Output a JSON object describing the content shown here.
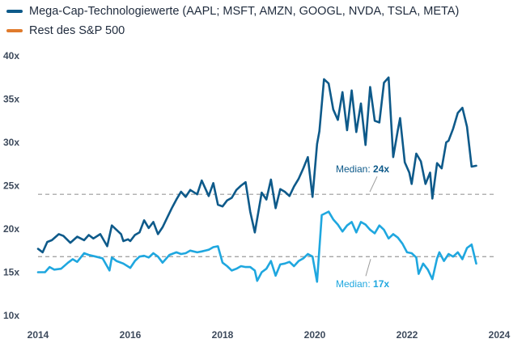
{
  "chart_data": {
    "type": "line",
    "title": "",
    "xlabel": "",
    "ylabel": "",
    "xlim": [
      2014,
      2024
    ],
    "ylim": [
      10,
      40
    ],
    "x_ticks": [
      "2014",
      "2016",
      "2018",
      "2020",
      "2022",
      "2024"
    ],
    "y_ticks": [
      "10x",
      "15x",
      "20x",
      "25x",
      "30x",
      "35x",
      "40x"
    ],
    "colors": {
      "mega": "#0e5a8a",
      "rest": "#1fa7df",
      "legend_rest": "#e07b2c",
      "median": "#9a9a9a"
    },
    "legend": [
      {
        "label": "Mega-Cap-Technologiewerte (AAPL; MSFT, AMZN, GOOGL, NVDA, TSLA, META)",
        "color": "#0e5a8a"
      },
      {
        "label": "Rest des S&P 500",
        "color": "#e07b2c"
      }
    ],
    "medians": [
      {
        "name": "mega",
        "value": 24,
        "prefix": "Median: ",
        "value_label": "24x"
      },
      {
        "name": "rest",
        "value": 16.8,
        "prefix": "Median: ",
        "value_label": "17x"
      }
    ],
    "series": [
      {
        "name": "Mega-Cap-Technologiewerte (AAPL; MSFT, AMZN, GOOGL, NVDA, TSLA, META)",
        "x": [
          2014.0,
          2014.1,
          2014.2,
          2014.3,
          2014.45,
          2014.55,
          2014.7,
          2014.85,
          2015.0,
          2015.1,
          2015.2,
          2015.35,
          2015.5,
          2015.6,
          2015.7,
          2015.8,
          2015.85,
          2015.95,
          2016.0,
          2016.1,
          2016.2,
          2016.3,
          2016.4,
          2016.5,
          2016.6,
          2016.7,
          2016.8,
          2016.9,
          2017.0,
          2017.1,
          2017.2,
          2017.3,
          2017.45,
          2017.55,
          2017.7,
          2017.8,
          2017.9,
          2018.0,
          2018.1,
          2018.2,
          2018.3,
          2018.4,
          2018.5,
          2018.6,
          2018.7,
          2018.85,
          2018.95,
          2019.05,
          2019.15,
          2019.25,
          2019.35,
          2019.45,
          2019.55,
          2019.65,
          2019.75,
          2019.85,
          2019.95,
          2020.05,
          2020.1,
          2020.2,
          2020.3,
          2020.4,
          2020.5,
          2020.6,
          2020.7,
          2020.8,
          2020.9,
          2021.0,
          2021.1,
          2021.2,
          2021.3,
          2021.4,
          2021.5,
          2021.6,
          2021.7,
          2021.8,
          2021.85,
          2021.95,
          2022.05,
          2022.1,
          2022.2,
          2022.3,
          2022.4,
          2022.5,
          2022.55,
          2022.65,
          2022.75,
          2022.85,
          2022.9,
          2023.0,
          2023.1,
          2023.2,
          2023.3,
          2023.4,
          2023.5
        ],
        "values": [
          17.7,
          17.3,
          18.5,
          18.7,
          19.4,
          19.2,
          18.4,
          19.1,
          18.7,
          19.3,
          18.9,
          19.4,
          18.0,
          20.4,
          19.9,
          19.4,
          18.6,
          18.8,
          18.6,
          19.3,
          19.6,
          21.0,
          20.1,
          20.8,
          19.4,
          20.2,
          21.3,
          22.4,
          23.4,
          24.3,
          23.7,
          24.5,
          24.0,
          25.6,
          23.8,
          25.3,
          22.8,
          22.6,
          23.3,
          23.6,
          24.5,
          25.0,
          25.4,
          22.0,
          19.6,
          24.2,
          23.4,
          25.7,
          22.4,
          24.6,
          24.3,
          23.8,
          24.9,
          25.8,
          27.0,
          28.3,
          23.7,
          29.8,
          31.3,
          37.3,
          36.8,
          33.8,
          32.6,
          35.8,
          31.4,
          36.0,
          31.2,
          34.5,
          29.7,
          36.4,
          32.5,
          32.3,
          36.9,
          37.5,
          28.3,
          31.4,
          32.8,
          27.7,
          26.5,
          25.2,
          28.7,
          27.8,
          25.2,
          26.5,
          23.5,
          27.6,
          27.0,
          30.0,
          30.2,
          31.6,
          33.4,
          34.0,
          31.8,
          27.2,
          27.3
        ],
        "color": "#0e5a8a"
      },
      {
        "name": "Rest des S&P 500",
        "x": [
          2014.0,
          2014.15,
          2014.25,
          2014.35,
          2014.5,
          2014.65,
          2014.75,
          2014.85,
          2015.0,
          2015.1,
          2015.25,
          2015.4,
          2015.55,
          2015.6,
          2015.7,
          2015.85,
          2016.0,
          2016.1,
          2016.2,
          2016.3,
          2016.4,
          2016.5,
          2016.6,
          2016.7,
          2016.85,
          2017.0,
          2017.1,
          2017.2,
          2017.3,
          2017.45,
          2017.55,
          2017.7,
          2017.8,
          2017.9,
          2018.0,
          2018.1,
          2018.2,
          2018.3,
          2018.4,
          2018.5,
          2018.6,
          2018.7,
          2018.75,
          2018.85,
          2018.95,
          2019.05,
          2019.15,
          2019.25,
          2019.35,
          2019.45,
          2019.55,
          2019.65,
          2019.75,
          2019.85,
          2019.95,
          2020.05,
          2020.15,
          2020.3,
          2020.4,
          2020.5,
          2020.6,
          2020.7,
          2020.8,
          2020.9,
          2021.0,
          2021.1,
          2021.2,
          2021.3,
          2021.4,
          2021.5,
          2021.6,
          2021.7,
          2021.8,
          2021.9,
          2022.0,
          2022.1,
          2022.2,
          2022.25,
          2022.35,
          2022.45,
          2022.55,
          2022.65,
          2022.7,
          2022.8,
          2022.9,
          2023.0,
          2023.1,
          2023.2,
          2023.3,
          2023.4,
          2023.5
        ],
        "values": [
          15.0,
          15.0,
          15.6,
          15.3,
          15.4,
          16.1,
          16.5,
          16.2,
          17.2,
          17.0,
          16.8,
          16.6,
          15.2,
          16.7,
          16.3,
          16.0,
          15.5,
          16.3,
          16.8,
          16.9,
          16.7,
          17.2,
          16.8,
          16.1,
          17.0,
          17.3,
          17.1,
          17.2,
          17.5,
          17.3,
          17.4,
          17.6,
          17.9,
          18.0,
          16.1,
          15.7,
          15.2,
          15.4,
          15.7,
          15.6,
          15.6,
          15.2,
          14.0,
          15.0,
          15.4,
          16.3,
          14.6,
          15.9,
          16.0,
          16.2,
          15.7,
          16.3,
          16.6,
          17.1,
          16.8,
          13.9,
          21.6,
          22.0,
          21.1,
          20.5,
          19.7,
          20.4,
          20.8,
          19.6,
          20.8,
          20.5,
          19.9,
          19.5,
          20.4,
          19.9,
          18.9,
          19.4,
          19.0,
          18.3,
          17.3,
          17.2,
          16.7,
          14.8,
          16.0,
          15.3,
          14.2,
          16.6,
          17.3,
          16.3,
          17.1,
          16.8,
          17.3,
          16.5,
          17.8,
          18.2,
          16.0
        ],
        "color": "#1fa7df"
      }
    ]
  }
}
